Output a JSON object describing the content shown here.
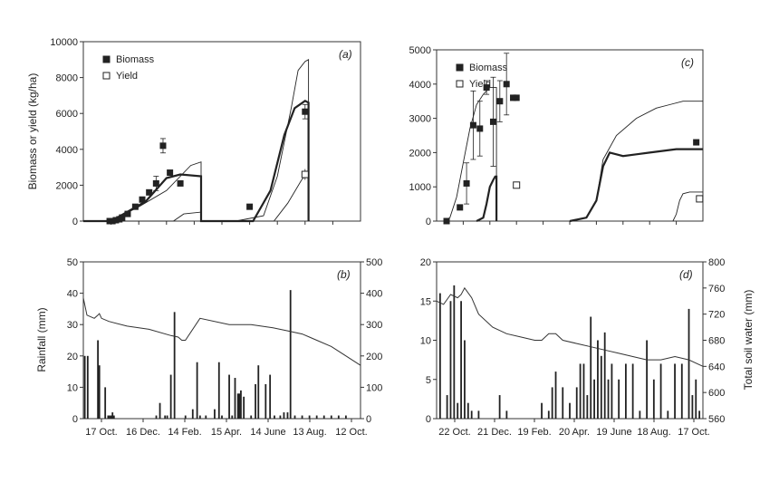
{
  "chart_data": [
    {
      "panel_label": "(a)",
      "type": "line",
      "ylabel": "Biomass or yield (kg/ha)",
      "ylim": [
        0,
        10000
      ],
      "y_ticks": [
        "0",
        "2000",
        "4000",
        "6000",
        "8000",
        "10000"
      ],
      "xlim": [
        0,
        400
      ],
      "legend": [
        {
          "name": "Biomass",
          "marker": "filled-square"
        },
        {
          "name": "Yield",
          "marker": "open-square"
        }
      ],
      "series": [
        {
          "style": "thin",
          "x": [
            0,
            40,
            80,
            120,
            155,
            170,
            170,
            220,
            260,
            280,
            300,
            310,
            320,
            325,
            325
          ],
          "y": [
            0,
            0,
            800,
            1700,
            3100,
            3300,
            0,
            0,
            300,
            2500,
            6300,
            8400,
            8900,
            9000,
            0
          ]
        },
        {
          "style": "thick",
          "x": [
            0,
            40,
            90,
            120,
            140,
            170,
            170,
            220,
            245,
            270,
            290,
            305,
            320,
            325,
            325
          ],
          "y": [
            0,
            0,
            1100,
            2400,
            2600,
            2500,
            0,
            0,
            0,
            1700,
            4800,
            6300,
            6700,
            6600,
            0
          ]
        },
        {
          "style": "thin",
          "x": [
            0,
            130,
            145,
            170,
            170,
            275,
            295,
            315,
            322,
            325,
            325
          ],
          "y": [
            0,
            0,
            400,
            500,
            0,
            0,
            1000,
            2300,
            2600,
            2700,
            0
          ]
        }
      ],
      "biomass_points": {
        "x": [
          38,
          42,
          47,
          52,
          56,
          64,
          75,
          85,
          95,
          105,
          115,
          125,
          140,
          240,
          320
        ],
        "y": [
          0,
          0,
          50,
          100,
          200,
          400,
          800,
          1200,
          1600,
          2100,
          4200,
          2700,
          2100,
          800,
          6100
        ],
        "err": [
          0,
          0,
          0,
          0,
          0,
          0,
          0,
          0,
          0,
          400,
          400,
          0,
          0,
          0,
          400
        ]
      },
      "yield_points": {
        "x": [
          320
        ],
        "y": [
          2600
        ],
        "err": [
          300
        ]
      }
    },
    {
      "panel_label": "(c)",
      "type": "line",
      "ylim": [
        0,
        5000
      ],
      "y_ticks": [
        "0",
        "1000",
        "2000",
        "3000",
        "4000",
        "5000"
      ],
      "xlim": [
        0,
        400
      ],
      "legend": [
        {
          "name": "Biomass",
          "marker": "filled-square"
        },
        {
          "name": "Yield",
          "marker": "open-square"
        }
      ],
      "series": [
        {
          "style": "thin",
          "x": [
            10,
            20,
            30,
            40,
            50,
            60,
            70,
            80,
            90,
            90
          ],
          "y": [
            0,
            100,
            700,
            1700,
            2700,
            3400,
            3700,
            3900,
            3900,
            0
          ]
        },
        {
          "style": "thick",
          "x": [
            60,
            70,
            75,
            80,
            85,
            88,
            90,
            90
          ],
          "y": [
            0,
            100,
            500,
            1000,
            1200,
            1300,
            1300,
            0
          ]
        },
        {
          "style": "thin",
          "x": [
            200,
            225,
            240,
            250,
            270,
            300,
            330,
            350,
            370,
            380,
            400
          ],
          "y": [
            0,
            100,
            600,
            1800,
            2500,
            3000,
            3300,
            3400,
            3500,
            3500,
            3500
          ]
        },
        {
          "style": "thick",
          "x": [
            200,
            225,
            240,
            250,
            260,
            270,
            280,
            300,
            320,
            340,
            360,
            380,
            400
          ],
          "y": [
            0,
            100,
            600,
            1600,
            2000,
            1950,
            1900,
            1950,
            2000,
            2050,
            2100,
            2100,
            2100
          ]
        },
        {
          "style": "thin",
          "x": [
            355,
            360,
            365,
            370,
            380,
            390,
            400
          ],
          "y": [
            0,
            200,
            600,
            800,
            850,
            850,
            850
          ]
        }
      ],
      "biomass_points": {
        "x": [
          15,
          35,
          45,
          55,
          65,
          75,
          85,
          95,
          105,
          115,
          120,
          390
        ],
        "y": [
          0,
          400,
          1100,
          2800,
          2700,
          3900,
          2900,
          3500,
          4000,
          3600,
          3600,
          2300
        ],
        "err": [
          0,
          0,
          600,
          1000,
          800,
          200,
          1300,
          600,
          900,
          0,
          0,
          0
        ]
      },
      "yield_points": {
        "x": [
          120,
          395
        ],
        "y": [
          1050,
          650
        ],
        "err": [
          0,
          0
        ]
      }
    },
    {
      "panel_label": "(b)",
      "type": "bar",
      "ylabel": "Rainfall (mm)",
      "ylim": [
        0,
        50
      ],
      "y_ticks": [
        "0",
        "10",
        "20",
        "30",
        "40",
        "50"
      ],
      "y2lim": [
        0,
        500
      ],
      "y2_ticks": [
        "0",
        "100",
        "200",
        "300",
        "400",
        "500"
      ],
      "x_tick_labels": [
        "17 Oct.",
        "16 Dec.",
        "14 Feb.",
        "15 Apr.",
        "14 June",
        "13 Aug.",
        "12 Oct."
      ],
      "xlim": [
        0,
        380
      ],
      "rain_x": [
        2,
        6,
        20,
        22,
        30,
        34,
        36,
        38,
        40,
        42,
        100,
        105,
        112,
        115,
        120,
        125,
        140,
        150,
        156,
        160,
        168,
        180,
        186,
        190,
        200,
        204,
        208,
        212,
        214,
        216,
        220,
        230,
        236,
        240,
        250,
        256,
        262,
        270,
        275,
        280,
        284,
        290,
        300,
        310,
        320,
        330,
        340,
        350,
        360
      ],
      "rain_y": [
        20,
        20,
        25,
        17,
        10,
        1,
        1,
        1,
        2,
        1,
        1,
        5,
        1,
        1,
        14,
        34,
        1,
        3,
        18,
        1,
        1,
        3,
        18,
        1,
        14,
        1,
        13,
        8,
        8,
        9,
        7,
        1,
        11,
        17,
        11,
        14,
        1,
        1,
        2,
        2,
        41,
        1,
        1,
        1,
        1,
        1,
        1,
        1,
        1
      ],
      "soil_water": {
        "x": [
          0,
          5,
          15,
          20,
          22,
          25,
          35,
          60,
          90,
          120,
          130,
          135,
          140,
          160,
          200,
          230,
          260,
          280,
          300,
          310,
          320,
          340,
          360,
          380
        ],
        "y": [
          385,
          330,
          320,
          330,
          335,
          320,
          310,
          295,
          285,
          265,
          260,
          250,
          250,
          320,
          300,
          300,
          290,
          280,
          270,
          260,
          250,
          230,
          200,
          170
        ]
      }
    },
    {
      "panel_label": "(d)",
      "type": "bar",
      "ylim": [
        0,
        20
      ],
      "y_ticks": [
        "0",
        "5",
        "10",
        "15",
        "20"
      ],
      "y2label": "Total soil water (mm)",
      "y2lim": [
        560,
        800
      ],
      "y2_ticks": [
        "560",
        "600",
        "640",
        "680",
        "720",
        "760",
        "800"
      ],
      "x_tick_labels": [
        "22 Oct.",
        "21 Dec.",
        "19 Feb.",
        "20 Apr.",
        "19 June",
        "18 Aug.",
        "17 Oct."
      ],
      "xlim": [
        0,
        380
      ],
      "rain_x": [
        5,
        15,
        20,
        25,
        30,
        35,
        40,
        45,
        50,
        60,
        90,
        100,
        150,
        160,
        165,
        170,
        180,
        190,
        200,
        205,
        210,
        215,
        220,
        225,
        230,
        235,
        240,
        245,
        250,
        260,
        270,
        280,
        290,
        300,
        310,
        320,
        330,
        340,
        350,
        360,
        365,
        370,
        375
      ],
      "rain_y": [
        16,
        3,
        15,
        17,
        2,
        15,
        10,
        2,
        1,
        1,
        3,
        1,
        2,
        1,
        4,
        6,
        4,
        2,
        4,
        7,
        7,
        3,
        13,
        5,
        10,
        8,
        11,
        5,
        7,
        5,
        7,
        7,
        1,
        10,
        5,
        7,
        1,
        7,
        7,
        14,
        3,
        5,
        1
      ],
      "soil_water": {
        "x": [
          0,
          10,
          20,
          30,
          35,
          40,
          50,
          60,
          80,
          100,
          120,
          140,
          150,
          160,
          170,
          180,
          200,
          220,
          240,
          260,
          280,
          300,
          320,
          340,
          360,
          380
        ],
        "y": [
          740,
          735,
          750,
          745,
          750,
          760,
          745,
          720,
          700,
          690,
          685,
          680,
          680,
          690,
          690,
          680,
          675,
          670,
          665,
          660,
          655,
          650,
          650,
          655,
          650,
          640
        ]
      }
    }
  ]
}
